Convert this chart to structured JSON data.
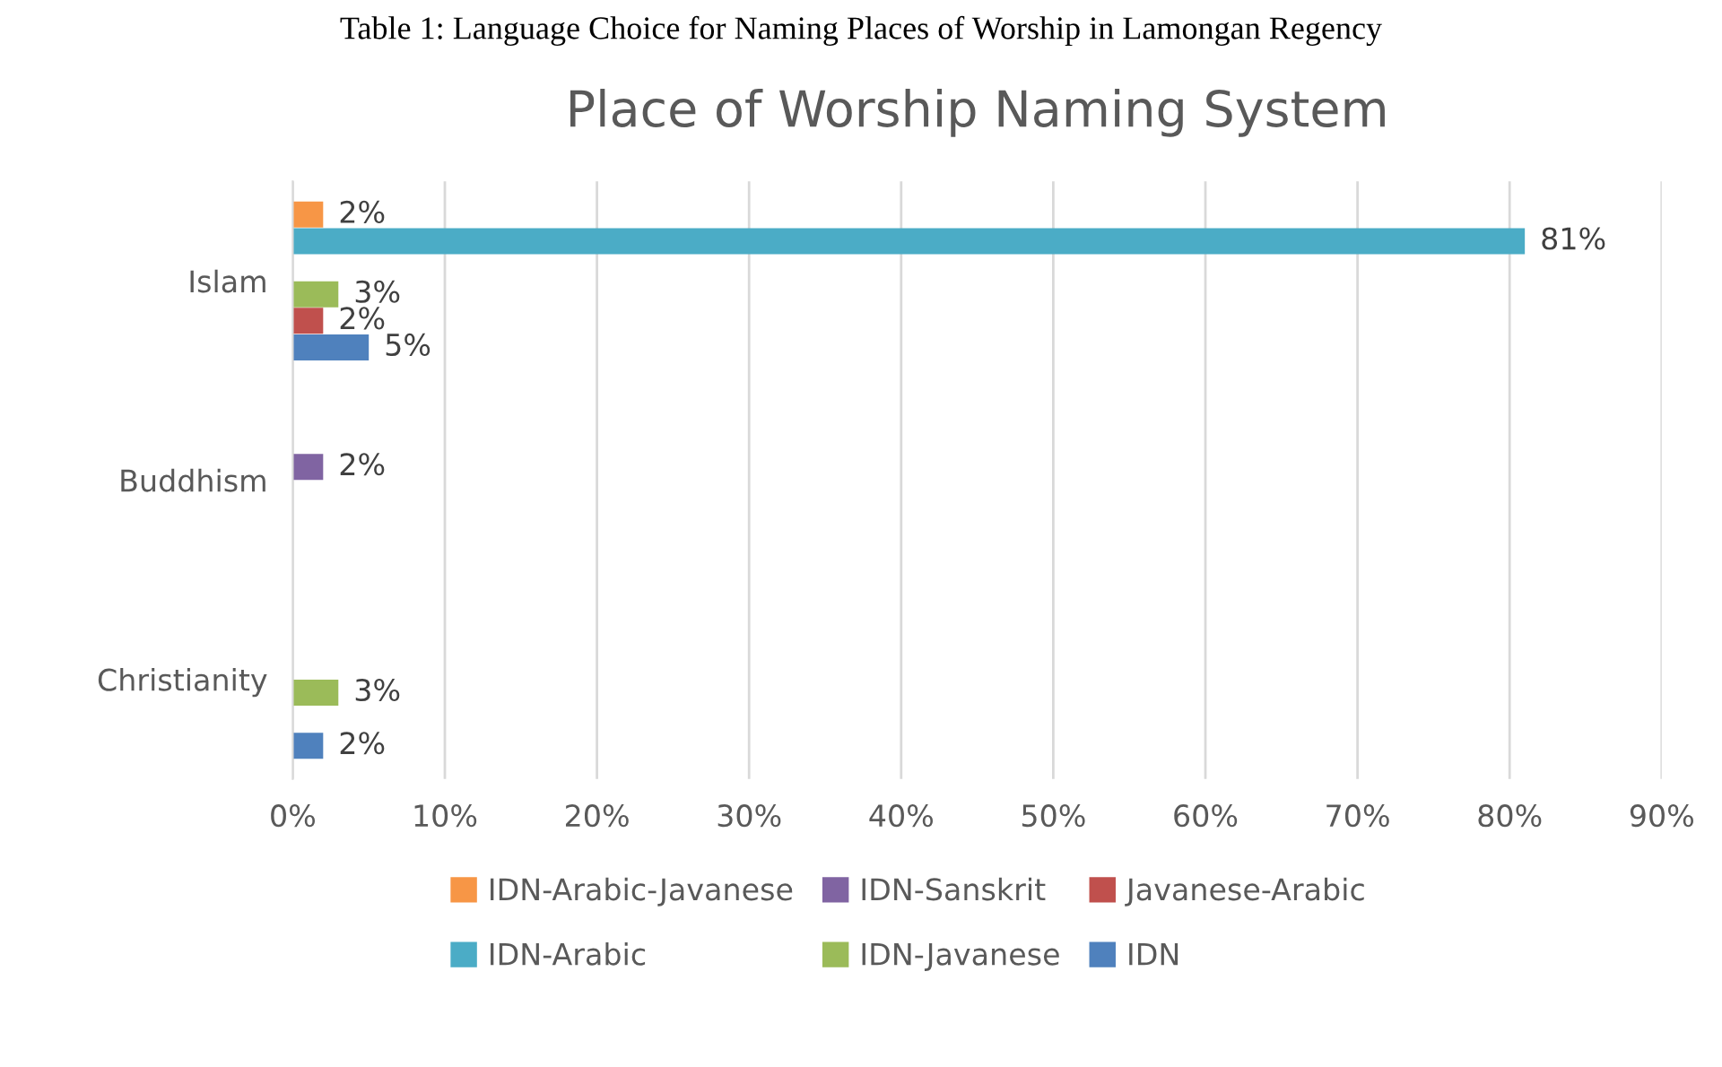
{
  "chart_data": {
    "type": "bar",
    "orientation": "horizontal",
    "title": "Place of Worship Naming System",
    "annotations": [
      "Table 1: Language Choice for Naming Places of Worship in Lamongan Regency"
    ],
    "categories": [
      "Islam",
      "Buddhism",
      "Christianity"
    ],
    "series": [
      {
        "name": "IDN-Arabic-Javanese",
        "color": "#f79646",
        "values": [
          2,
          null,
          null
        ],
        "value_labels": [
          "2%",
          null,
          null
        ]
      },
      {
        "name": "IDN-Arabic",
        "color": "#4bacc6",
        "values": [
          81,
          null,
          null
        ],
        "value_labels": [
          "81%",
          null,
          null
        ]
      },
      {
        "name": "IDN-Sanskrit",
        "color": "#8064a2",
        "values": [
          null,
          2,
          null
        ],
        "value_labels": [
          null,
          "2%",
          null
        ]
      },
      {
        "name": "IDN-Javanese",
        "color": "#9bbb59",
        "values": [
          3,
          null,
          3
        ],
        "value_labels": [
          "3%",
          null,
          "3%"
        ]
      },
      {
        "name": "Javanese-Arabic",
        "color": "#c0504d",
        "values": [
          2,
          null,
          null
        ],
        "value_labels": [
          "2%",
          null,
          null
        ]
      },
      {
        "name": "IDN",
        "color": "#4f81bd",
        "values": [
          5,
          null,
          2
        ],
        "value_labels": [
          "5%",
          null,
          "2%"
        ]
      }
    ],
    "xlim": [
      0,
      90
    ],
    "xticks": [
      {
        "value": 0,
        "label": "0%"
      },
      {
        "value": 10,
        "label": "10%"
      },
      {
        "value": 20,
        "label": "20%"
      },
      {
        "value": 30,
        "label": "30%"
      },
      {
        "value": 40,
        "label": "40%"
      },
      {
        "value": 50,
        "label": "50%"
      },
      {
        "value": 60,
        "label": "60%"
      },
      {
        "value": 70,
        "label": "70%"
      },
      {
        "value": 80,
        "label": "80%"
      },
      {
        "value": 90,
        "label": "90%"
      }
    ],
    "grid": "x",
    "legend": "bottom"
  }
}
